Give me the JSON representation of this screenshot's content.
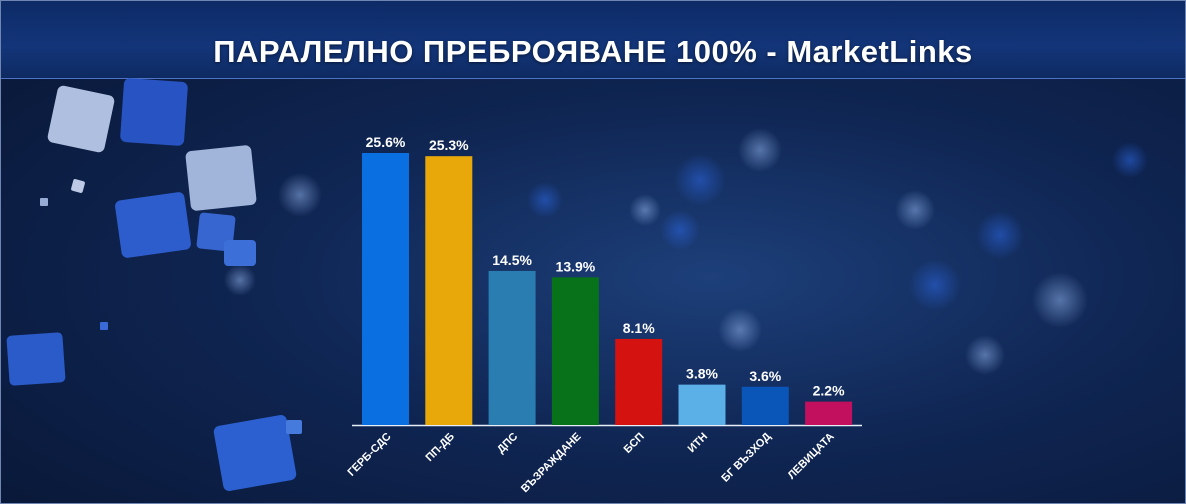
{
  "header": {
    "title": "ПАРАЛЕЛНО ПРЕБРОЯВАНЕ 100% - MarketLinks"
  },
  "chart_data": {
    "type": "bar",
    "categories": [
      "ГЕРБ-СДС",
      "ПП-ДБ",
      "ДПС",
      "ВЪЗРАЖДАНЕ",
      "БСП",
      "ИТН",
      "БГ ВЪЗХОД",
      "ЛЕВИЦАТА"
    ],
    "values": [
      25.6,
      25.3,
      14.5,
      13.9,
      8.1,
      3.8,
      3.6,
      2.2
    ],
    "value_labels": [
      "25.6%",
      "25.3%",
      "14.5%",
      "13.9%",
      "8.1%",
      "3.8%",
      "3.6%",
      "2.2%"
    ],
    "colors": [
      "#0a6fe0",
      "#e8a80a",
      "#2a7db0",
      "#07721a",
      "#d4120f",
      "#5cb0e8",
      "#0a55b8",
      "#c2105e"
    ],
    "title": "ПАРАЛЕЛНО ПРЕБРОЯВАНЕ 100% - MarketLinks",
    "xlabel": "",
    "ylabel": "",
    "ylim": [
      0,
      25.6
    ],
    "grid": false,
    "legend": "none"
  }
}
